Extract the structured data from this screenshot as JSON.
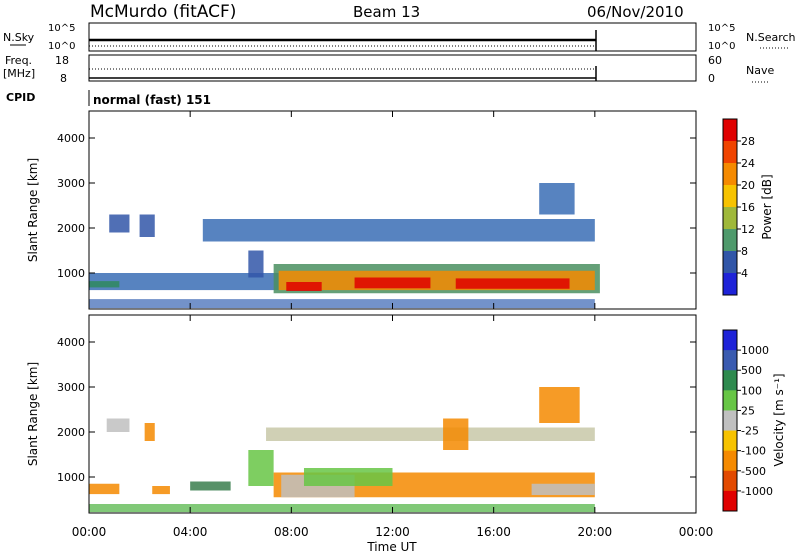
{
  "header": {
    "station": "McMurdo (fitACF)",
    "beam": "Beam 13",
    "date": "06/Nov/2010"
  },
  "top_panels": {
    "nsky_label": "N.Sky",
    "nsky_ticks": [
      "10^5",
      "10^0"
    ],
    "nsearch_label": "N.Search",
    "nsearch_ticks": [
      "10^5",
      "10^0"
    ],
    "freq_label_1": "Freq.",
    "freq_label_2": "[MHz]",
    "freq_ticks": [
      "18",
      "8"
    ],
    "nave_label": "Nave",
    "nave_ticks": [
      "60",
      "0"
    ],
    "cpid_label": "CPID",
    "cpid_value": "normal (fast) 151"
  },
  "chart_data": [
    {
      "type": "heatmap",
      "panel": "power",
      "ylabel": "Slant Range [km]",
      "xlabel": "",
      "x_ticks": [
        "00:00",
        "04:00",
        "08:00",
        "12:00",
        "16:00",
        "20:00",
        "00:00"
      ],
      "xlim_hours": [
        0,
        24
      ],
      "y_ticks": [
        1000,
        2000,
        3000,
        4000
      ],
      "ylim": [
        200,
        4600
      ],
      "colorbar_label": "Power [dB]",
      "colorbar_ticks": [
        "28",
        "24",
        "20",
        "16",
        "12",
        "8",
        "4"
      ],
      "colorbar_colors": [
        "#e00000",
        "#f04400",
        "#f58a00",
        "#f7c300",
        "#9fb83a",
        "#4f9a6c",
        "#3156a8",
        "#1e23d8"
      ],
      "bands": [
        {
          "t0": 0.0,
          "t1": 7.5,
          "r0": 620,
          "r1": 1000,
          "color": "#3a6db5"
        },
        {
          "t0": 0.0,
          "t1": 1.2,
          "r0": 680,
          "r1": 820,
          "color": "#2f8a5e"
        },
        {
          "t0": 6.3,
          "t1": 6.9,
          "r0": 900,
          "r1": 1500,
          "color": "#3156a8"
        },
        {
          "t0": 7.3,
          "t1": 20.2,
          "r0": 550,
          "r1": 1200,
          "color": "#4a8f60"
        },
        {
          "t0": 7.5,
          "t1": 20.0,
          "r0": 620,
          "r1": 1050,
          "color": "#f58a00"
        },
        {
          "t0": 7.8,
          "t1": 9.2,
          "r0": 600,
          "r1": 800,
          "color": "#e00000"
        },
        {
          "t0": 10.5,
          "t1": 13.5,
          "r0": 660,
          "r1": 900,
          "color": "#e00000"
        },
        {
          "t0": 14.5,
          "t1": 19.0,
          "r0": 650,
          "r1": 880,
          "color": "#e00000"
        },
        {
          "t0": 0.8,
          "t1": 1.6,
          "r0": 1900,
          "r1": 2300,
          "color": "#3156a8"
        },
        {
          "t0": 2.0,
          "t1": 2.6,
          "r0": 1800,
          "r1": 2300,
          "color": "#3156a8"
        },
        {
          "t0": 4.5,
          "t1": 20.0,
          "r0": 1700,
          "r1": 2200,
          "color": "#3a6db5"
        },
        {
          "t0": 17.8,
          "t1": 19.2,
          "r0": 2300,
          "r1": 3000,
          "color": "#3a6db5"
        },
        {
          "t0": 0.0,
          "t1": 20.0,
          "r0": 220,
          "r1": 420,
          "color": "#5a7fc0"
        }
      ]
    },
    {
      "type": "heatmap",
      "panel": "velocity",
      "ylabel": "Slant Range [km]",
      "xlabel": "Time UT",
      "x_ticks": [
        "00:00",
        "04:00",
        "08:00",
        "12:00",
        "16:00",
        "20:00",
        "00:00"
      ],
      "xlim_hours": [
        0,
        24
      ],
      "y_ticks": [
        1000,
        2000,
        3000,
        4000
      ],
      "ylim": [
        200,
        4600
      ],
      "colorbar_label": "Velocity [m s⁻¹]",
      "colorbar_ticks": [
        "1000",
        "500",
        "100",
        "25",
        "-25",
        "-100",
        "-500",
        "-1000"
      ],
      "colorbar_colors": [
        "#1e23d8",
        "#3a5bb0",
        "#2e8a4e",
        "#67c645",
        "#c0c0c0",
        "#f7c300",
        "#f58a00",
        "#e24a00",
        "#e00000"
      ],
      "bands": [
        {
          "t0": 0.0,
          "t1": 1.2,
          "r0": 620,
          "r1": 850,
          "color": "#f58a00"
        },
        {
          "t0": 2.5,
          "t1": 3.2,
          "r0": 620,
          "r1": 800,
          "color": "#f58a00"
        },
        {
          "t0": 4.0,
          "t1": 5.6,
          "r0": 700,
          "r1": 900,
          "color": "#3a7e4e"
        },
        {
          "t0": 6.3,
          "t1": 7.3,
          "r0": 800,
          "r1": 1600,
          "color": "#67c645"
        },
        {
          "t0": 7.3,
          "t1": 20.0,
          "r0": 550,
          "r1": 1100,
          "color": "#f58a00"
        },
        {
          "t0": 7.6,
          "t1": 10.5,
          "r0": 550,
          "r1": 1050,
          "color": "#c0c0c0"
        },
        {
          "t0": 8.5,
          "t1": 12.0,
          "r0": 800,
          "r1": 1200,
          "color": "#67c645"
        },
        {
          "t0": 17.5,
          "t1": 20.0,
          "r0": 600,
          "r1": 850,
          "color": "#c0c0c0"
        },
        {
          "t0": 0.7,
          "t1": 1.6,
          "r0": 2000,
          "r1": 2300,
          "color": "#c0c0c0"
        },
        {
          "t0": 2.2,
          "t1": 2.6,
          "r0": 1800,
          "r1": 2200,
          "color": "#f58a00"
        },
        {
          "t0": 7.0,
          "t1": 20.0,
          "r0": 1800,
          "r1": 2100,
          "color": "#c8c8a8"
        },
        {
          "t0": 14.0,
          "t1": 15.0,
          "r0": 1600,
          "r1": 2300,
          "color": "#f58a00"
        },
        {
          "t0": 17.8,
          "t1": 19.4,
          "r0": 2200,
          "r1": 3000,
          "color": "#f58a00"
        },
        {
          "t0": 0.0,
          "t1": 20.0,
          "r0": 220,
          "r1": 400,
          "color": "#6bbf60"
        }
      ]
    }
  ]
}
